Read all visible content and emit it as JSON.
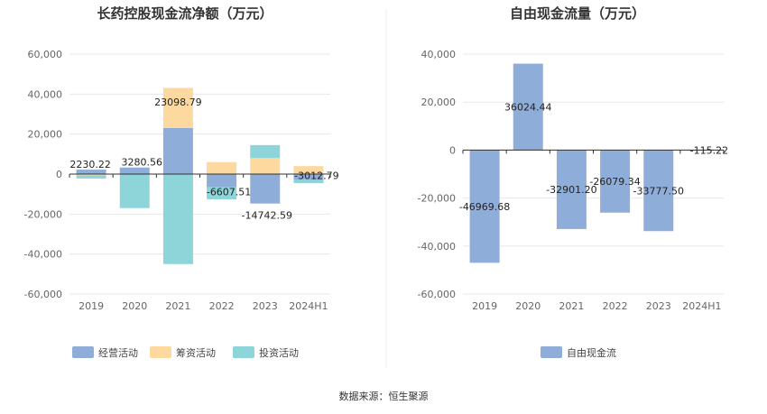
{
  "chart_data": [
    {
      "type": "bar",
      "stacked": true,
      "title": "长药控股现金流净额（万元）",
      "categories": [
        "2019",
        "2020",
        "2021",
        "2022",
        "2023",
        "2024H1"
      ],
      "yticks": [
        "60,000",
        "40,000",
        "20,000",
        "0",
        "-20,000",
        "-40,000",
        "-60,000"
      ],
      "ylim": [
        -60000,
        60000
      ],
      "legend_position": "bottom-left",
      "series": [
        {
          "name": "经营活动",
          "color": "#8fadd9",
          "values": [
            2230.22,
            3280.56,
            23098.79,
            -6607.51,
            -14742.59,
            -3012.79
          ]
        },
        {
          "name": "筹资活动",
          "color": "#fdd9a0",
          "values": [
            -700,
            0,
            20000,
            6000,
            8000,
            4000
          ]
        },
        {
          "name": "投资活动",
          "color": "#8dd5d9",
          "values": [
            -1500,
            -17000,
            -45000,
            -6000,
            6500,
            -1500
          ]
        }
      ],
      "data_labels": [
        "2230.22",
        "3280.56",
        "23098.79",
        "-6607.51",
        "-14742.59",
        "-3012.79"
      ]
    },
    {
      "type": "bar",
      "title": "自由现金流量（万元）",
      "categories": [
        "2019",
        "2020",
        "2021",
        "2022",
        "2023",
        "2024H1"
      ],
      "yticks": [
        "40,000",
        "20,000",
        "0",
        "-20,000",
        "-40,000",
        "-60,000"
      ],
      "ylim": [
        -60000,
        40000
      ],
      "legend_position": "bottom",
      "series": [
        {
          "name": "自由现金流",
          "color": "#8fadd9",
          "values": [
            -46969.68,
            36024.44,
            -32901.2,
            -26079.34,
            -33777.5,
            -115.22
          ]
        }
      ],
      "data_labels": [
        "-46969.68",
        "36024.44",
        "-32901.20",
        "-26079.34",
        "-33777.50",
        "-115.22"
      ]
    }
  ],
  "footer": {
    "source": "数据来源：恒生聚源"
  }
}
